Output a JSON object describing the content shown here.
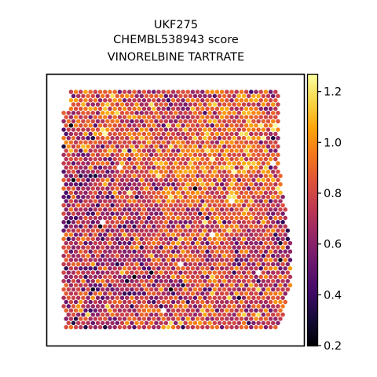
{
  "chart_data": {
    "type": "scatter",
    "subtype": "spatial-hexagonal-spot-map",
    "title_lines": [
      "UKF275",
      "CHEMBL538943 score",
      "VINORELBINE TARTRATE"
    ],
    "xlabel": "",
    "ylabel": "",
    "axis_ticks_visible": false,
    "grid": false,
    "colormap": "inferno",
    "color_range": [
      0.2,
      1.27
    ],
    "colorbar": {
      "placement": "right",
      "ticks": [
        0.2,
        0.4,
        0.6,
        0.8,
        1.0,
        1.2
      ],
      "tick_labels": [
        "0.2",
        "0.4",
        "0.6",
        "0.8",
        "1.0",
        "1.2"
      ]
    },
    "score_summary": {
      "typical_value": 0.78,
      "spread": 0.16,
      "regional_pattern": [
        {
          "region": "top-center",
          "value": 1.0
        },
        {
          "region": "top-right-dark-patch",
          "value": 0.42
        },
        {
          "region": "right-middle",
          "value": 0.95
        },
        {
          "region": "left-middle",
          "value": 0.6
        },
        {
          "region": "right-edge",
          "value": 0.55
        },
        {
          "region": "lower-left",
          "value": 0.68
        }
      ],
      "missing_spots": "a few white spots scattered within the tissue"
    },
    "colors": {
      "frame": "#000000",
      "background": "#ffffff",
      "missing_spot": "#ffffff"
    }
  }
}
